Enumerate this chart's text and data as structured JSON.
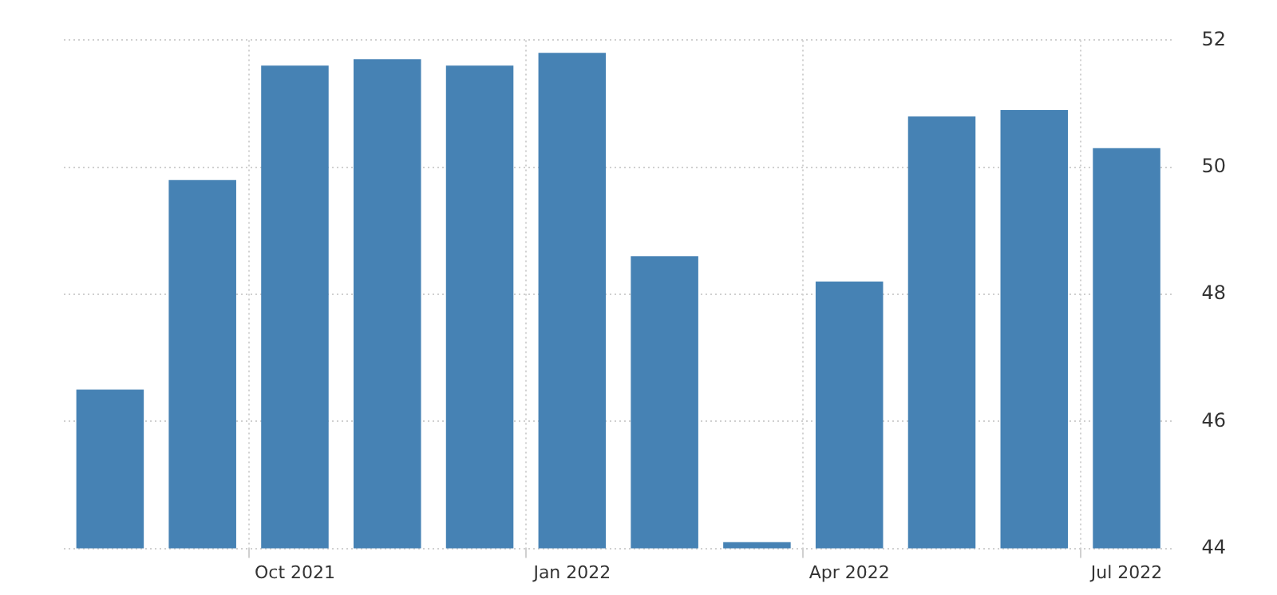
{
  "chart_data": {
    "type": "bar",
    "categories": [
      null,
      null,
      "Oct 2021",
      null,
      null,
      "Jan 2022",
      null,
      null,
      "Apr 2022",
      null,
      null,
      "Jul 2022"
    ],
    "values": [
      46.5,
      49.8,
      51.6,
      51.7,
      51.6,
      51.8,
      48.6,
      44.1,
      48.2,
      50.8,
      50.9,
      50.3
    ],
    "color": "#4682b4",
    "ylim": [
      44,
      52
    ],
    "yticks": [
      44,
      46,
      48,
      50,
      52
    ],
    "grid": true
  }
}
